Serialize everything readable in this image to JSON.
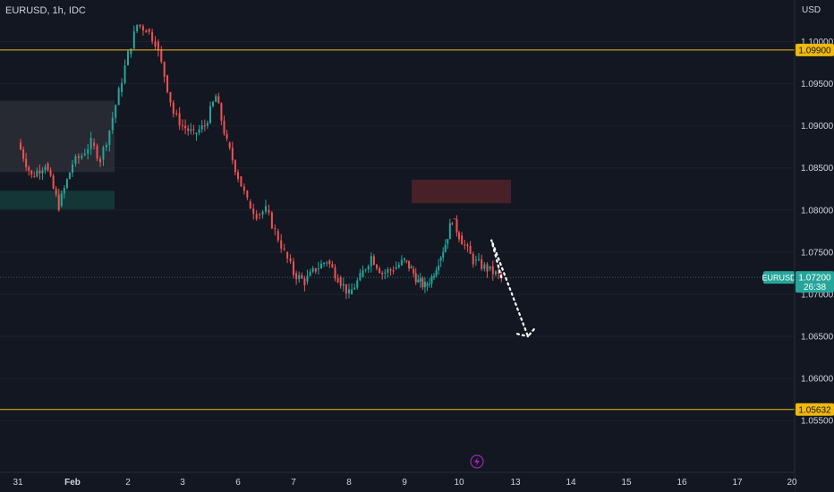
{
  "header": {
    "title": "EURUSD, 1h, IDC",
    "currency": "USD"
  },
  "colors": {
    "bg": "#131722",
    "up": "#26a69a",
    "down": "#ef5350",
    "level": "#f0b90b",
    "text": "#d1d4dc"
  },
  "chart_data": {
    "type": "candlestick",
    "symbol": "EURUSD",
    "interval": "1h",
    "source": "IDC",
    "ylim": [
      1.0495,
      1.1043
    ],
    "y_ticks": [
      "1.10000",
      "1.09500",
      "1.09000",
      "1.08500",
      "1.08000",
      "1.07500",
      "1.07000",
      "1.06500",
      "1.06000",
      "1.05500"
    ],
    "x_ticks": [
      "31",
      "Feb",
      "2",
      "3",
      "6",
      "7",
      "8",
      "9",
      "10",
      "13",
      "14",
      "15",
      "16",
      "17",
      "20"
    ],
    "price_series": [
      [
        "31",
        1.088
      ],
      [
        "31",
        1.084
      ],
      [
        "31",
        1.0855
      ],
      [
        "31",
        1.0805
      ],
      [
        "Feb",
        1.0855
      ],
      [
        "Feb",
        1.0865
      ],
      [
        "Feb",
        1.088
      ],
      [
        "Feb",
        1.086
      ],
      [
        "Feb",
        1.0895
      ],
      [
        "Feb",
        1.094
      ],
      [
        "2",
        1.0985
      ],
      [
        "2",
        1.102
      ],
      [
        "2",
        1.1015
      ],
      [
        "2",
        1.1
      ],
      [
        "2",
        1.096
      ],
      [
        "2",
        1.0915
      ],
      [
        "3",
        1.09
      ],
      [
        "3",
        1.089
      ],
      [
        "3",
        1.09
      ],
      [
        "3",
        1.0935
      ],
      [
        "3",
        1.088
      ],
      [
        "6",
        1.084
      ],
      [
        "6",
        1.081
      ],
      [
        "6",
        1.0795
      ],
      [
        "6",
        1.08
      ],
      [
        "6",
        1.0775
      ],
      [
        "6",
        1.075
      ],
      [
        "7",
        1.0725
      ],
      [
        "7",
        1.0715
      ],
      [
        "7",
        1.073
      ],
      [
        "7",
        1.074
      ],
      [
        "7",
        1.072
      ],
      [
        "8",
        1.07
      ],
      [
        "8",
        1.072
      ],
      [
        "8",
        1.0745
      ],
      [
        "8",
        1.0725
      ],
      [
        "8",
        1.073
      ],
      [
        "9",
        1.074
      ],
      [
        "9",
        1.073
      ],
      [
        "9",
        1.0715
      ],
      [
        "9",
        1.071
      ],
      [
        "9",
        1.072
      ],
      [
        "9",
        1.074
      ],
      [
        "9",
        1.076
      ],
      [
        "9",
        1.079
      ],
      [
        "10",
        1.077
      ],
      [
        "10",
        1.074
      ],
      [
        "10",
        1.073
      ],
      [
        "10",
        1.072
      ]
    ],
    "horizontal_levels": [
      {
        "price": 1.099,
        "label": "1.09900"
      },
      {
        "price": 1.05632,
        "label": "1.05632"
      }
    ],
    "last_price": {
      "label": "EURUSD",
      "value": "1.07200",
      "countdown": "26:38"
    },
    "projection": [
      [
        "10",
        1.072
      ],
      [
        "13",
        1.0765
      ],
      [
        "13",
        1.065
      ],
      [
        "13",
        1.066
      ]
    ]
  }
}
